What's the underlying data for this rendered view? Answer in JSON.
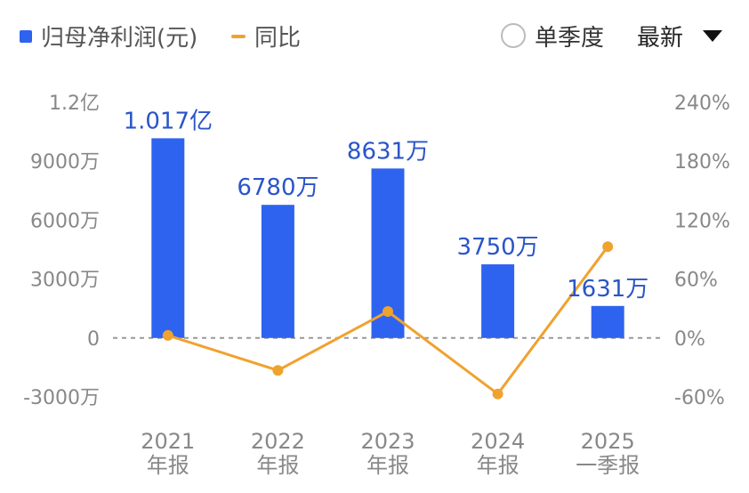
{
  "legend": {
    "bar_label": "归母净利润(元)",
    "line_label": "同比"
  },
  "controls": {
    "single_quarter_label": "单季度",
    "dropdown_value": "最新"
  },
  "colors": {
    "bar": "#2e63f0",
    "line": "#f0a22e",
    "zero_line": "#999999"
  },
  "chart_data": {
    "type": "bar",
    "title": "",
    "categories": [
      [
        "2021",
        "年报"
      ],
      [
        "2022",
        "年报"
      ],
      [
        "2023",
        "年报"
      ],
      [
        "2024",
        "年报"
      ],
      [
        "2025",
        "一季报"
      ]
    ],
    "series": [
      {
        "name": "归母净利润(元)",
        "type": "bar",
        "axis": "left",
        "values": [
          101700000,
          67800000,
          86310000,
          37500000,
          16310000
        ],
        "labels": [
          "1.017亿",
          "6780万",
          "8631万",
          "3750万",
          "1631万"
        ]
      },
      {
        "name": "同比",
        "type": "line",
        "axis": "right",
        "values": [
          2.6,
          -33,
          27,
          -57,
          93
        ]
      }
    ],
    "y_left": {
      "ticks": [
        120000000,
        90000000,
        60000000,
        30000000,
        0,
        -30000000
      ],
      "tick_labels": [
        "1.2亿",
        "9000万",
        "6000万",
        "3000万",
        "0",
        "-3000万"
      ],
      "range": [
        -30000000,
        120000000
      ]
    },
    "y_right": {
      "ticks": [
        240,
        180,
        120,
        60,
        0,
        -60
      ],
      "tick_labels": [
        "240%",
        "180%",
        "120%",
        "60%",
        "0%",
        "-60%"
      ],
      "range": [
        -60,
        240
      ]
    },
    "zero_line": "dashed",
    "grid": false
  }
}
